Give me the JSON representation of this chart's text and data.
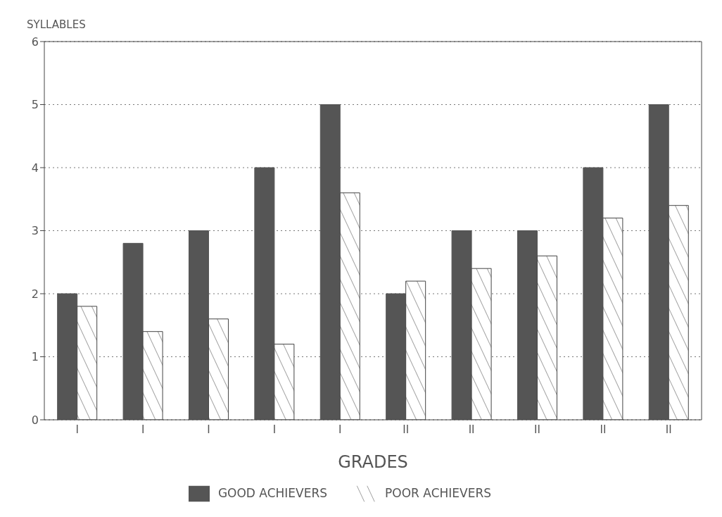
{
  "chart_data": {
    "type": "bar",
    "ylabel": "SYLLABLES",
    "xlabel": "GRADES",
    "categories": [
      "I",
      "I",
      "I",
      "I",
      "I",
      "II",
      "II",
      "II",
      "II",
      "II"
    ],
    "series": [
      {
        "name": "GOOD ACHIEVERS",
        "color": "#555555",
        "values": [
          2,
          2.8,
          3,
          4,
          5,
          2,
          3,
          3,
          4,
          5
        ]
      },
      {
        "name": "POOR ACHIEVERS",
        "color": "#444444",
        "values": [
          1.8,
          1.4,
          1.6,
          1.2,
          3.6,
          2.2,
          2.4,
          2.6,
          3.2,
          3.4
        ]
      }
    ],
    "ylim": [
      0,
      6
    ],
    "yticks": [
      0,
      1,
      2,
      3,
      4,
      5,
      6
    ],
    "grid": "y",
    "legend": "bottom"
  }
}
